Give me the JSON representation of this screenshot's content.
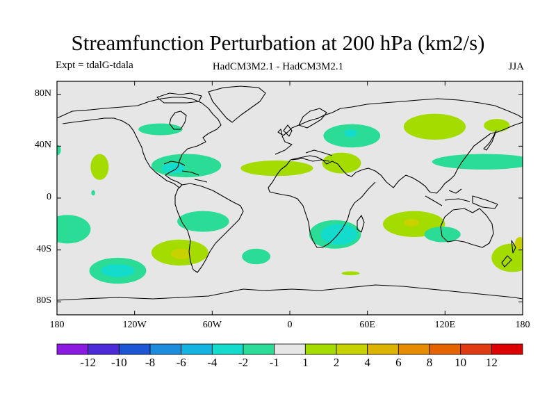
{
  "header": {
    "title": "Streamfunction Perturbation at 200 hPa (km2/s)",
    "experiment": "Expt = tdalG-tdala",
    "model": "HadCM3M2.1 - HadCM3M2.1",
    "season": "JJA"
  },
  "map": {
    "projection": "cylindrical equidistant",
    "lon_range": [
      -180,
      180
    ],
    "lat_range": [
      -90,
      90
    ],
    "lat_ticks": [
      {
        "value": 80,
        "label": "80N"
      },
      {
        "value": 40,
        "label": "40N"
      },
      {
        "value": 0,
        "label": "0"
      },
      {
        "value": -40,
        "label": "40S"
      },
      {
        "value": -80,
        "label": "80S"
      }
    ],
    "lon_ticks": [
      {
        "value": -180,
        "label": "180"
      },
      {
        "value": -120,
        "label": "120W"
      },
      {
        "value": -60,
        "label": "60W"
      },
      {
        "value": 0,
        "label": "0"
      },
      {
        "value": 60,
        "label": "60E"
      },
      {
        "value": 120,
        "label": "120E"
      },
      {
        "value": 180,
        "label": "180"
      }
    ],
    "background_color": "#e6e6e6",
    "anomalies": [
      {
        "name": "anomaly-n-atlantic-neg",
        "lon": -100,
        "lat": 53,
        "rlon": 17,
        "rlat": 4.5,
        "level": -1
      },
      {
        "name": "anomaly-gulf-neg-1",
        "lon": -80,
        "lat": 25,
        "rlon": 27,
        "rlat": 9,
        "level": -1
      },
      {
        "name": "anomaly-gulf-neg-2",
        "lon": -90,
        "lat": 23,
        "rlon": 9,
        "rlat": 4,
        "level": -2
      },
      {
        "name": "anomaly-ne-pac-pos",
        "lon": -147,
        "lat": 24,
        "rlon": 7,
        "rlat": 10,
        "level": 1
      },
      {
        "name": "anomaly-nw-africa-pos",
        "lon": -10,
        "lat": 23,
        "rlon": 28,
        "rlat": 6,
        "level": 1
      },
      {
        "name": "anomaly-mideast-pos",
        "lon": 40,
        "lat": 27,
        "rlon": 15,
        "rlat": 8,
        "level": 1
      },
      {
        "name": "anomaly-central-asia-neg-1",
        "lon": 48,
        "lat": 48,
        "rlon": 22,
        "rlat": 9,
        "level": -1
      },
      {
        "name": "anomaly-central-asia-neg-2",
        "lon": 47,
        "lat": 50,
        "rlon": 5,
        "rlat": 3,
        "level": -2
      },
      {
        "name": "anomaly-ne-asia-pos",
        "lon": 112,
        "lat": 55,
        "rlon": 24,
        "rlat": 10,
        "level": 1
      },
      {
        "name": "anomaly-okhotsk-pos",
        "lon": 160,
        "lat": 56,
        "rlon": 10,
        "rlat": 5,
        "level": 1
      },
      {
        "name": "anomaly-nw-pac-neg",
        "lon": 150,
        "lat": 28,
        "rlon": 40,
        "rlat": 6,
        "level": -1
      },
      {
        "name": "anomaly-atl-edge-neg",
        "lon": -180,
        "lat": 37,
        "rlon": 3,
        "rlat": 4,
        "level": -1
      },
      {
        "name": "anomaly-c-pac-dot-neg",
        "lon": -152,
        "lat": 4,
        "rlon": 1.5,
        "rlat": 2,
        "level": -1
      },
      {
        "name": "anomaly-s-pac-edge-neg",
        "lon": -172,
        "lat": -24,
        "rlon": 18,
        "rlat": 11,
        "level": -1
      },
      {
        "name": "anomaly-se-pac-pos",
        "lon": -85,
        "lat": -42,
        "rlon": 22,
        "rlat": 10,
        "level": 1
      },
      {
        "name": "anomaly-se-pac-pos-2",
        "lon": -84,
        "lat": -43,
        "rlon": 8,
        "rlat": 4,
        "level": 2
      },
      {
        "name": "anomaly-s-america-neg",
        "lon": -67,
        "lat": -18,
        "rlon": 20,
        "rlat": 8,
        "level": -1
      },
      {
        "name": "anomaly-s-pac-neg-1",
        "lon": -133,
        "lat": -56,
        "rlon": 22,
        "rlat": 10,
        "level": -1
      },
      {
        "name": "anomaly-s-pac-neg-2",
        "lon": -133,
        "lat": -56,
        "rlon": 13,
        "rlat": 5,
        "level": -2
      },
      {
        "name": "anomaly-s-atl-neg",
        "lon": -26,
        "lat": -45,
        "rlon": 11,
        "rlat": 6,
        "level": -1
      },
      {
        "name": "anomaly-s-africa-neg-1",
        "lon": 35,
        "lat": -28,
        "rlon": 20,
        "rlat": 11,
        "level": -1
      },
      {
        "name": "anomaly-s-africa-neg-2",
        "lon": 38,
        "lat": -28,
        "rlon": 14,
        "rlat": 8,
        "level": -2
      },
      {
        "name": "anomaly-s-ocean-pos",
        "lon": 47,
        "lat": -58,
        "rlon": 7,
        "rlat": 1.5,
        "level": 1
      },
      {
        "name": "anomaly-indian-pos-1",
        "lon": 96,
        "lat": -20,
        "rlon": 24,
        "rlat": 10,
        "level": 1
      },
      {
        "name": "anomaly-indian-pos-2",
        "lon": 94,
        "lat": -19,
        "rlon": 6,
        "rlat": 3,
        "level": 2
      },
      {
        "name": "anomaly-australia-neg",
        "lon": 118,
        "lat": -28,
        "rlon": 14,
        "rlat": 6,
        "level": -1
      },
      {
        "name": "anomaly-sw-pac-pos-1",
        "lon": 172,
        "lat": -46,
        "rlon": 16,
        "rlat": 11,
        "level": 1
      },
      {
        "name": "anomaly-sw-pac-pos-2",
        "lon": 178,
        "lat": -35,
        "rlon": 4,
        "rlat": 5,
        "level": 2
      }
    ]
  },
  "colorbar": {
    "colors": [
      "#8a1ae0",
      "#4c2ad8",
      "#1e55d4",
      "#1e8cdc",
      "#14b4e0",
      "#14dccc",
      "#2adc96",
      "#e6e6e6",
      "#a4dc00",
      "#c8d200",
      "#dcb400",
      "#e68c00",
      "#e66400",
      "#e03c14",
      "#dc0000"
    ],
    "labels": [
      "-12",
      "-10",
      "-8",
      "-6",
      "-4",
      "-2",
      "-1",
      "1",
      "2",
      "4",
      "6",
      "8",
      "10",
      "12"
    ]
  },
  "level_colors": {
    "-1": "#2adc96",
    "-2": "#14dccc",
    "1": "#a4dc00",
    "2": "#c8d200"
  }
}
